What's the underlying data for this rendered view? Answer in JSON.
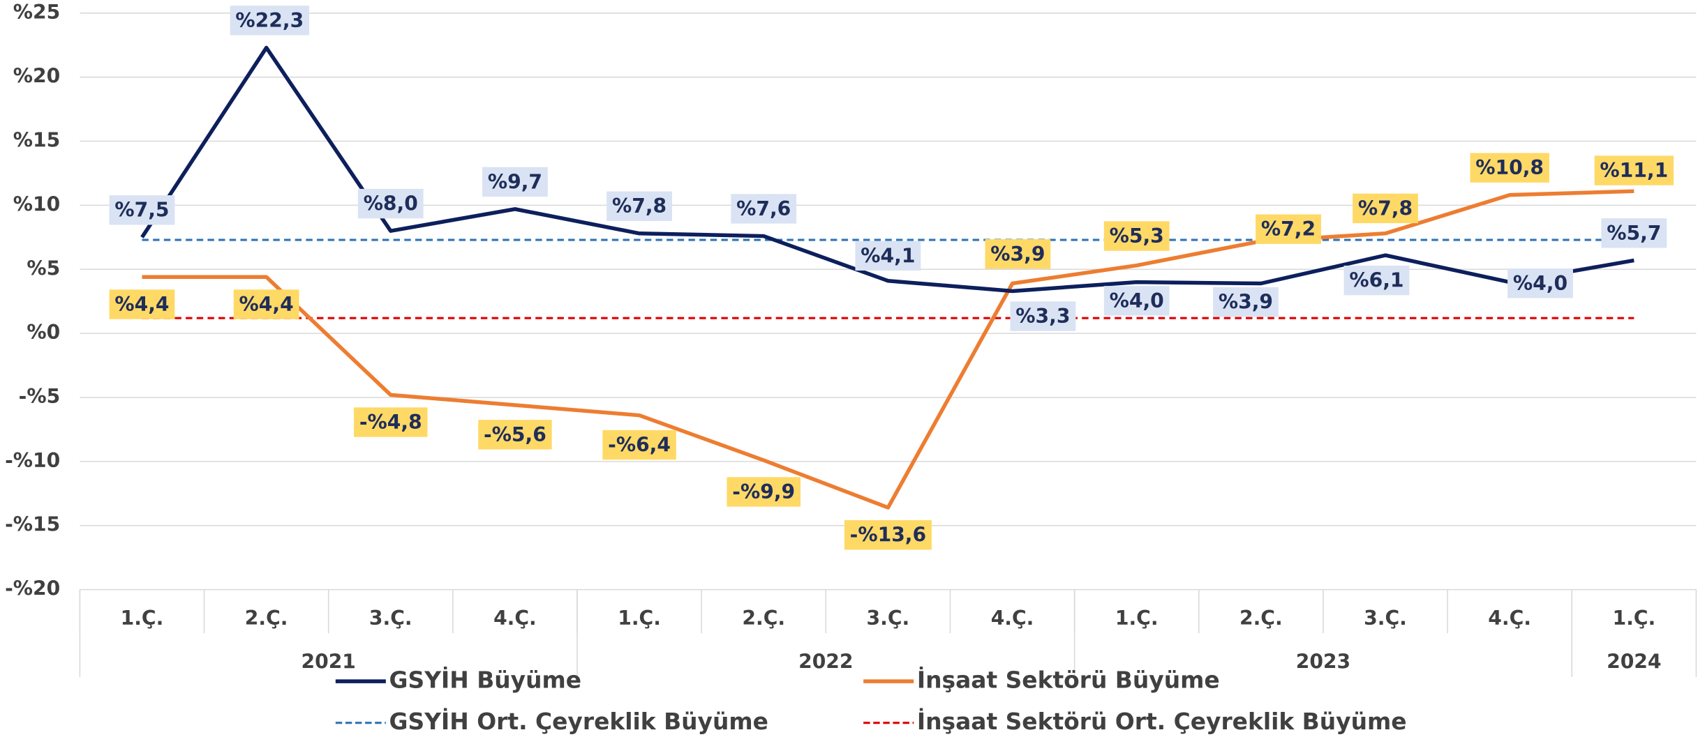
{
  "chart_data": {
    "type": "line",
    "categories": [
      "1.Ç.",
      "2.Ç.",
      "3.Ç.",
      "4.Ç.",
      "1.Ç.",
      "2.Ç.",
      "3.Ç.",
      "4.Ç.",
      "1.Ç.",
      "2.Ç.",
      "3.Ç.",
      "4.Ç.",
      "1.Ç."
    ],
    "groups": [
      {
        "label": "2021",
        "span": 4
      },
      {
        "label": "2022",
        "span": 4
      },
      {
        "label": "2023",
        "span": 4
      },
      {
        "label": "2024",
        "span": 1
      }
    ],
    "series": [
      {
        "name": "GSYİH Büyüme",
        "color": "#0d1f5c",
        "style": "solid",
        "values": [
          7.5,
          22.3,
          8.0,
          9.7,
          7.8,
          7.6,
          4.1,
          3.3,
          4.0,
          3.9,
          6.1,
          4.0,
          5.7
        ],
        "value_labels": [
          "%7,5",
          "%22,3",
          "%8,0",
          "%9,7",
          "%7,8",
          "%7,6",
          "%4,1",
          "%3,3",
          "%4,0",
          "%3,9",
          "%6,1",
          "%4,0",
          "%5,7"
        ],
        "label_color": "#dae3f3"
      },
      {
        "name": "İnşaat Sektörü Büyüme",
        "color": "#ed7d31",
        "style": "solid",
        "values": [
          4.4,
          4.4,
          -4.8,
          -5.6,
          -6.4,
          -9.9,
          -13.6,
          3.9,
          5.3,
          7.2,
          7.8,
          10.8,
          11.1
        ],
        "value_labels": [
          "%4,4",
          "%4,4",
          "-%4,8",
          "-%5,6",
          "-%6,4",
          "-%9,9",
          "-%13,6",
          "%3,9",
          "%5,3",
          "%7,2",
          "%7,8",
          "%10,8",
          "%11,1"
        ],
        "label_color": "#ffd966"
      },
      {
        "name": "GSYİH Ort. Çeyreklik Büyüme",
        "color": "#2e75b6",
        "style": "dashed",
        "values": [
          7.3,
          7.3,
          7.3,
          7.3,
          7.3,
          7.3,
          7.3,
          7.3,
          7.3,
          7.3,
          7.3,
          7.3,
          7.3
        ]
      },
      {
        "name": "İnşaat Sektörü Ort. Çeyreklik Büyüme",
        "color": "#e00000",
        "style": "dashed",
        "values": [
          1.2,
          1.2,
          1.2,
          1.2,
          1.2,
          1.2,
          1.2,
          1.2,
          1.2,
          1.2,
          1.2,
          1.2,
          1.2
        ]
      }
    ],
    "ylim": [
      -20,
      25
    ],
    "yticks": [
      {
        "value": -20,
        "label": "-%20"
      },
      {
        "value": -15,
        "label": "-%15"
      },
      {
        "value": -10,
        "label": "-%10"
      },
      {
        "value": -5,
        "label": "-%5"
      },
      {
        "value": 0,
        "label": "%0"
      },
      {
        "value": 5,
        "label": "%5"
      },
      {
        "value": 10,
        "label": "%10"
      },
      {
        "value": 15,
        "label": "%15"
      },
      {
        "value": 20,
        "label": "%20"
      },
      {
        "value": 25,
        "label": "%25"
      }
    ],
    "grid": true
  }
}
